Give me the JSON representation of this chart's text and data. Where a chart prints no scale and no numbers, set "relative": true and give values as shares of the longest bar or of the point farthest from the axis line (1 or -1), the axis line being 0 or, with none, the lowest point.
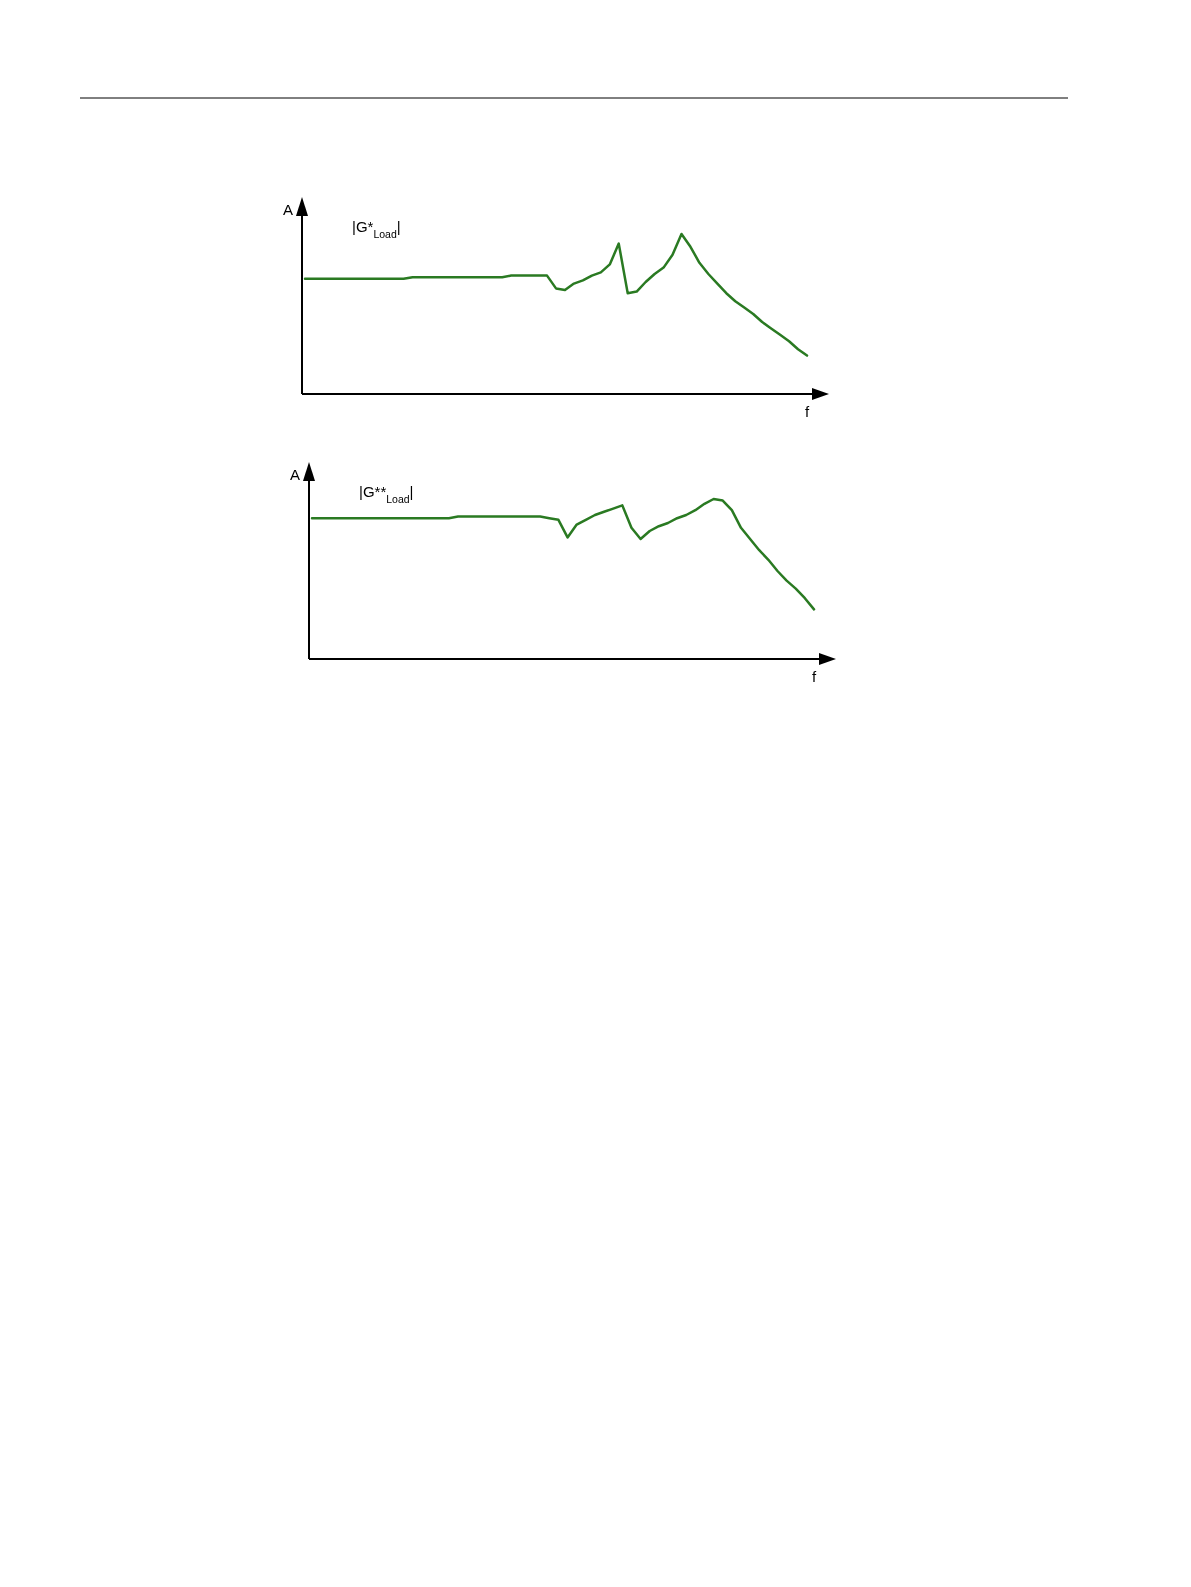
{
  "chart_data": [
    {
      "type": "line",
      "relative": true,
      "xlabel": "f",
      "ylabel": "A",
      "annotations": [
        "|G*$_{Load}$|"
      ],
      "categories": [
        null,
        null,
        null,
        null,
        null,
        null,
        null,
        null,
        null,
        null,
        null,
        null,
        null,
        null,
        null,
        null,
        null,
        null,
        null,
        null,
        null,
        null,
        null,
        null,
        null,
        null,
        null,
        null,
        null,
        null,
        null,
        null,
        null,
        null,
        null,
        null,
        null,
        null,
        null,
        null,
        null,
        null,
        null,
        null,
        null,
        null,
        null,
        null,
        null,
        null,
        null,
        null,
        null,
        null,
        null,
        null,
        null
      ],
      "series": [
        {
          "color": "#2a7a22",
          "values": [
            0.72,
            0.72,
            0.72,
            0.72,
            0.72,
            0.72,
            0.72,
            0.72,
            0.72,
            0.72,
            0.72,
            0.72,
            0.73,
            0.73,
            0.73,
            0.73,
            0.73,
            0.73,
            0.73,
            0.73,
            0.73,
            0.73,
            0.73,
            0.74,
            0.74,
            0.74,
            0.74,
            0.74,
            0.66,
            0.65,
            0.69,
            0.71,
            0.74,
            0.76,
            0.81,
            0.94,
            0.63,
            0.64,
            0.7,
            0.75,
            0.79,
            0.87,
            1.0,
            0.92,
            0.82,
            0.75,
            0.69,
            0.63,
            0.58,
            0.54,
            0.5,
            0.45,
            0.41,
            0.37,
            0.33,
            0.28,
            0.24
          ]
        }
      ]
    },
    {
      "type": "line",
      "relative": true,
      "xlabel": "f",
      "ylabel": "A",
      "annotations": [
        "|G**$_{Load}$|"
      ],
      "categories": [
        null,
        null,
        null,
        null,
        null,
        null,
        null,
        null,
        null,
        null,
        null,
        null,
        null,
        null,
        null,
        null,
        null,
        null,
        null,
        null,
        null,
        null,
        null,
        null,
        null,
        null,
        null,
        null,
        null,
        null,
        null,
        null,
        null,
        null,
        null,
        null,
        null,
        null,
        null,
        null,
        null,
        null,
        null,
        null,
        null,
        null,
        null,
        null,
        null,
        null,
        null,
        null,
        null,
        null,
        null,
        null
      ],
      "series": [
        {
          "color": "#2a7a22",
          "values": [
            0.88,
            0.88,
            0.88,
            0.88,
            0.88,
            0.88,
            0.88,
            0.88,
            0.88,
            0.88,
            0.88,
            0.88,
            0.88,
            0.88,
            0.88,
            0.88,
            0.89,
            0.89,
            0.89,
            0.89,
            0.89,
            0.89,
            0.89,
            0.89,
            0.89,
            0.89,
            0.88,
            0.87,
            0.76,
            0.84,
            0.87,
            0.9,
            0.92,
            0.94,
            0.96,
            0.82,
            0.75,
            0.8,
            0.83,
            0.85,
            0.88,
            0.9,
            0.93,
            0.97,
            1.0,
            0.99,
            0.93,
            0.82,
            0.75,
            0.68,
            0.62,
            0.55,
            0.49,
            0.44,
            0.38,
            0.31
          ]
        }
      ]
    }
  ]
}
